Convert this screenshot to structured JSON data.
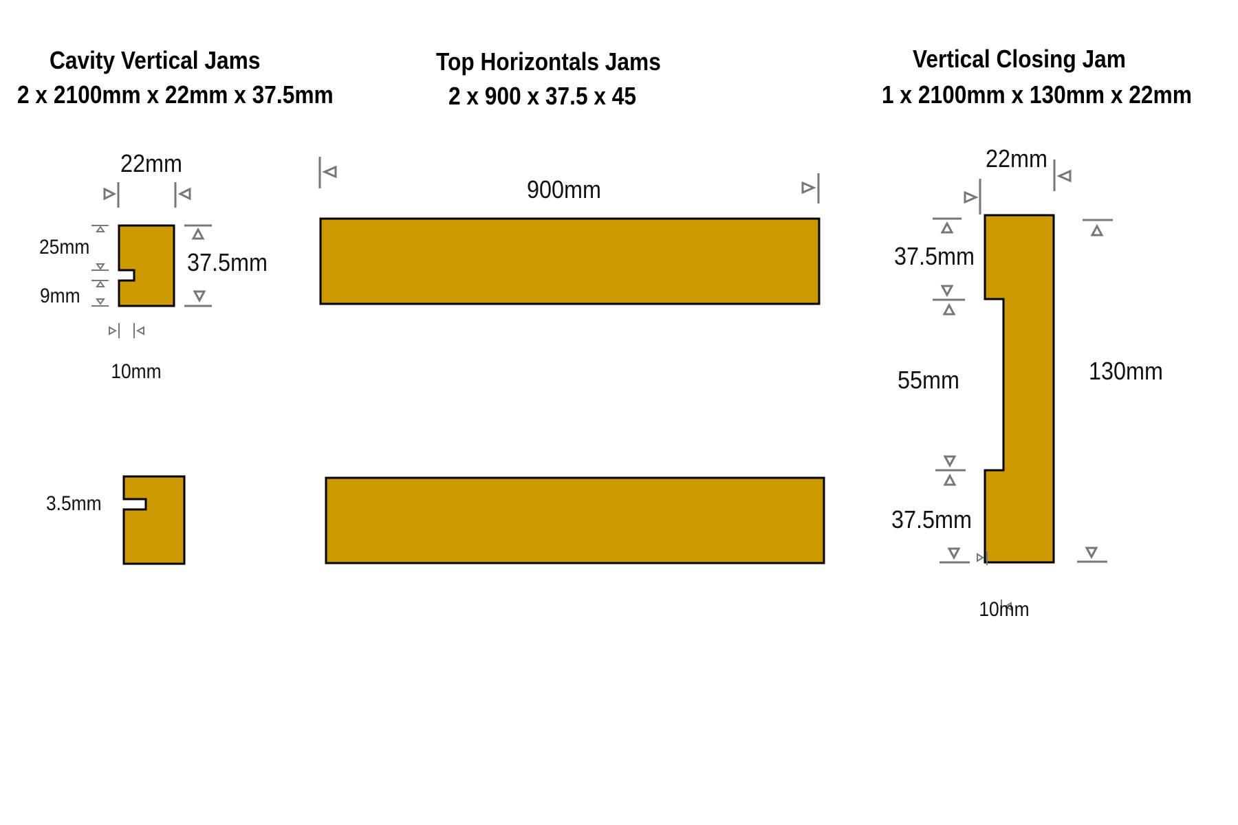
{
  "colors": {
    "wood": "#CC9900",
    "outline": "#000000",
    "dimension": "#777777",
    "text": "#111111"
  },
  "sections": {
    "cavity": {
      "title": "Cavity Vertical Jams",
      "subtitle": "2 x 2100mm x 22mm x 37.5mm",
      "labels": {
        "width": "22mm",
        "height": "37.5mm",
        "top": "25mm",
        "groove": "9mm",
        "depth": "10mm",
        "slot": "3.5mm"
      }
    },
    "top": {
      "title": "Top Horizontals Jams",
      "subtitle": "2 x 900 x 37.5 x 45",
      "labels": {
        "length": "900mm"
      }
    },
    "closing": {
      "title": "Vertical Closing Jam",
      "subtitle": "1 x 2100mm x 130mm x 22mm",
      "labels": {
        "width": "22mm",
        "top": "37.5mm",
        "middle": "55mm",
        "bottom": "37.5mm",
        "height": "130mm",
        "depth": "10mm"
      }
    }
  }
}
